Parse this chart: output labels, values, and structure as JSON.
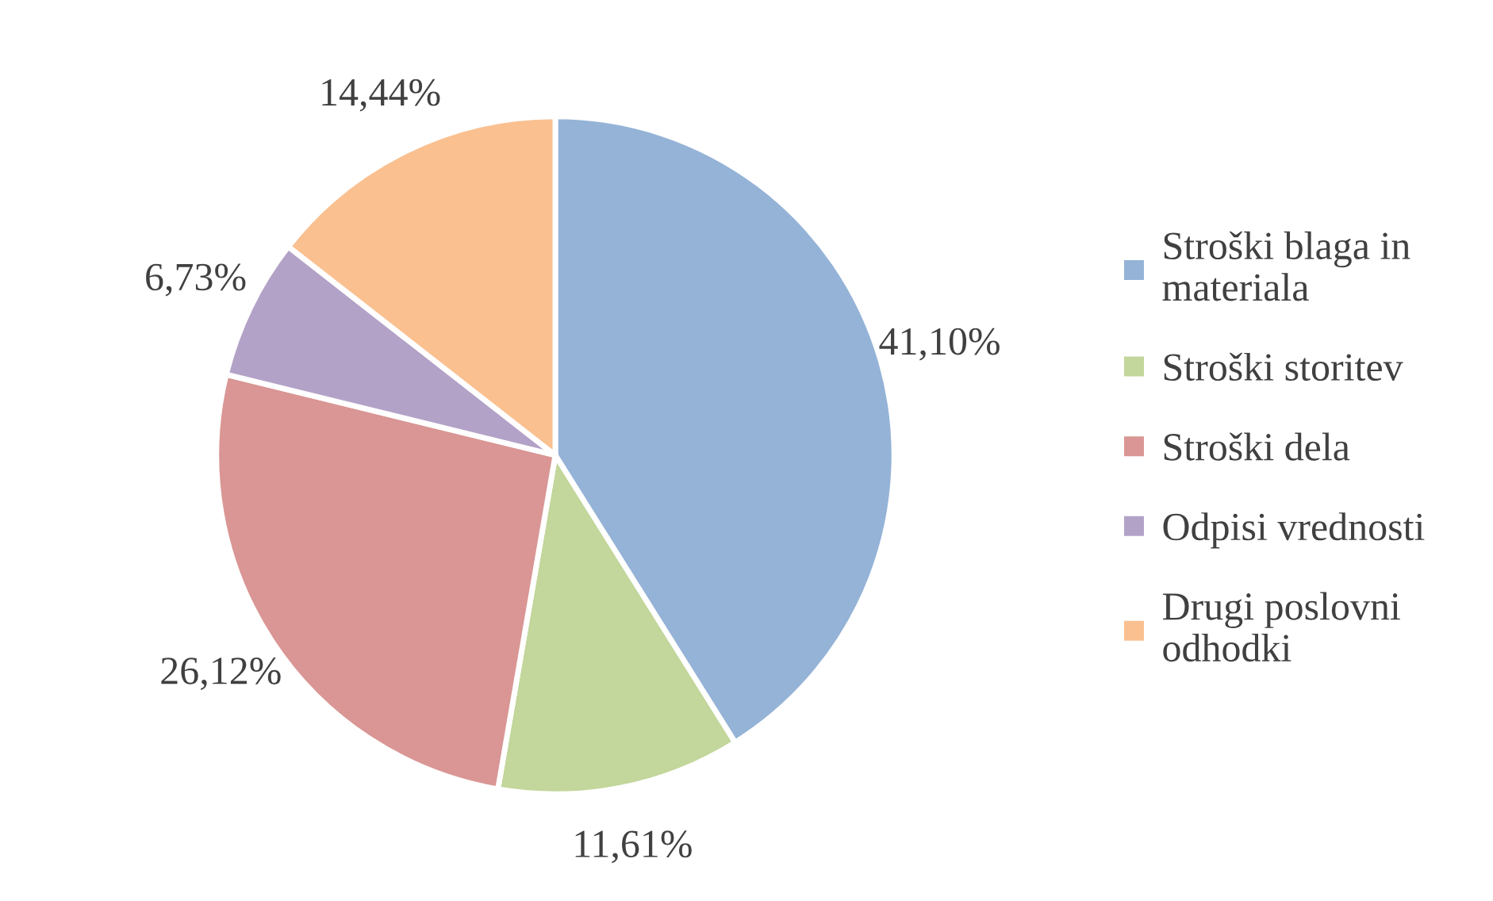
{
  "chart_data": {
    "type": "pie",
    "categories": [
      "Stroški blaga in materiala",
      "Stroški storitev",
      "Stroški dela",
      "Odpisi vrednosti",
      "Drugi poslovni odhodki"
    ],
    "values": [
      41.1,
      11.61,
      26.12,
      6.73,
      14.44
    ],
    "value_labels": [
      "41,10%",
      "11,61%",
      "26,12%",
      "6,73%",
      "14,44%"
    ],
    "colors": [
      "#95b3d7",
      "#c3d69b",
      "#d99694",
      "#b3a2c7",
      "#fac090"
    ],
    "legend": "right"
  }
}
